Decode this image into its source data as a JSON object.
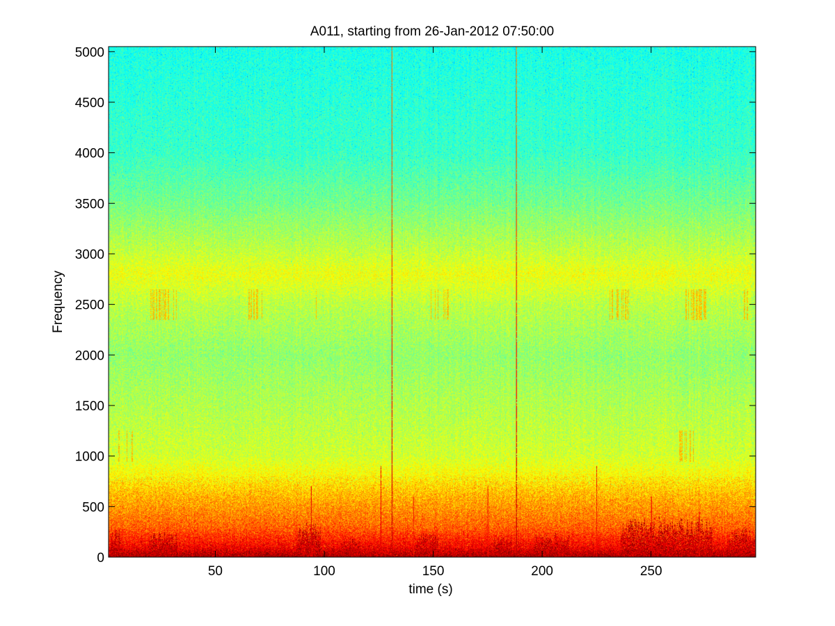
{
  "chart_data": {
    "type": "heatmap",
    "title": "A011, starting from 26-Jan-2012 07:50:00",
    "xlabel": "time (s)",
    "ylabel": "Frequency",
    "xlim": [
      1,
      298
    ],
    "ylim": [
      0,
      5050
    ],
    "x_ticks": [
      50,
      100,
      150,
      200,
      250
    ],
    "x_tick_labels": [
      "50",
      "100",
      "150",
      "200",
      "250"
    ],
    "y_ticks": [
      0,
      500,
      1000,
      1500,
      2000,
      2500,
      3000,
      3500,
      4000,
      4500,
      5000
    ],
    "y_tick_labels": [
      "0",
      "500",
      "1000",
      "1500",
      "2000",
      "2500",
      "3000",
      "3500",
      "4000",
      "4500",
      "5000"
    ],
    "colormap": "jet",
    "grid": false,
    "legend": "none",
    "intensity_profile_by_frequency": [
      {
        "frequency": 0,
        "level": 0.97
      },
      {
        "frequency": 100,
        "level": 0.88
      },
      {
        "frequency": 300,
        "level": 0.78
      },
      {
        "frequency": 600,
        "level": 0.7
      },
      {
        "frequency": 800,
        "level": 0.63
      },
      {
        "frequency": 1000,
        "level": 0.58
      },
      {
        "frequency": 1500,
        "level": 0.55
      },
      {
        "frequency": 2000,
        "level": 0.52
      },
      {
        "frequency": 2500,
        "level": 0.56
      },
      {
        "frequency": 2800,
        "level": 0.61
      },
      {
        "frequency": 3000,
        "level": 0.57
      },
      {
        "frequency": 3500,
        "level": 0.49
      },
      {
        "frequency": 4000,
        "level": 0.43
      },
      {
        "frequency": 5050,
        "level": 0.4
      }
    ],
    "broadband_transients": [
      {
        "time": 131,
        "max_frequency": 5050,
        "level": 0.95
      },
      {
        "time": 188,
        "max_frequency": 5050,
        "level": 0.95
      },
      {
        "time": 126,
        "max_frequency": 900,
        "level": 0.9
      },
      {
        "time": 225,
        "max_frequency": 900,
        "level": 0.88
      },
      {
        "time": 94,
        "max_frequency": 700,
        "level": 0.92
      },
      {
        "time": 141,
        "max_frequency": 600,
        "level": 0.85
      },
      {
        "time": 175,
        "max_frequency": 700,
        "level": 0.86
      },
      {
        "time": 250,
        "max_frequency": 600,
        "level": 0.9
      },
      {
        "time": 272,
        "max_frequency": 450,
        "level": 0.86
      }
    ],
    "low_frequency_energy_bursts": [
      {
        "time_start": 2,
        "time_end": 6,
        "max_frequency": 300
      },
      {
        "time_start": 20,
        "time_end": 32,
        "max_frequency": 250
      },
      {
        "time_start": 88,
        "time_end": 98,
        "max_frequency": 350
      },
      {
        "time_start": 108,
        "time_end": 116,
        "max_frequency": 200
      },
      {
        "time_start": 142,
        "time_end": 152,
        "max_frequency": 250
      },
      {
        "time_start": 178,
        "time_end": 186,
        "max_frequency": 220
      },
      {
        "time_start": 196,
        "time_end": 212,
        "max_frequency": 250
      },
      {
        "time_start": 236,
        "time_end": 278,
        "max_frequency": 400
      },
      {
        "time_start": 286,
        "time_end": 298,
        "max_frequency": 300
      }
    ],
    "tonal_clusters": [
      {
        "time_start": 5,
        "time_end": 12,
        "frequency_low": 950,
        "frequency_high": 1250
      },
      {
        "time_start": 20,
        "time_end": 32,
        "frequency_low": 2350,
        "frequency_high": 2650
      },
      {
        "time_start": 64,
        "time_end": 72,
        "frequency_low": 2350,
        "frequency_high": 2650
      },
      {
        "time_start": 95,
        "time_end": 98,
        "frequency_low": 2350,
        "frequency_high": 2650
      },
      {
        "time_start": 149,
        "time_end": 158,
        "frequency_low": 2350,
        "frequency_high": 2650
      },
      {
        "time_start": 229,
        "time_end": 240,
        "frequency_low": 2350,
        "frequency_high": 2650
      },
      {
        "time_start": 265,
        "time_end": 275,
        "frequency_low": 2350,
        "frequency_high": 2650
      },
      {
        "time_start": 263,
        "time_end": 270,
        "frequency_low": 950,
        "frequency_high": 1250
      },
      {
        "time_start": 290,
        "time_end": 296,
        "frequency_low": 2350,
        "frequency_high": 2650
      }
    ]
  }
}
